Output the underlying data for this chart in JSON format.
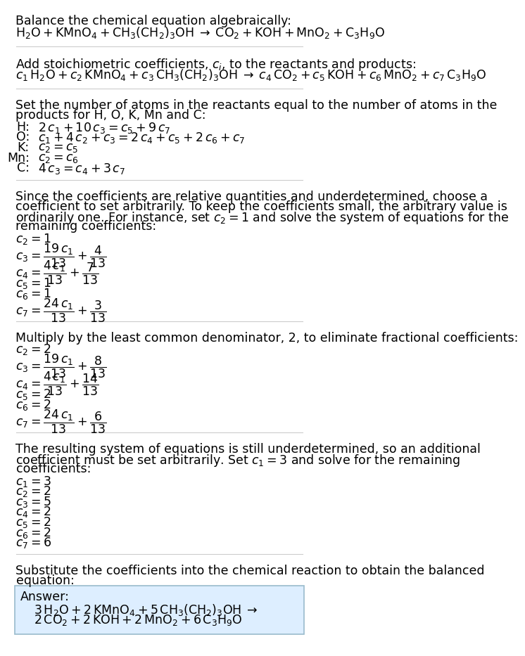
{
  "bg_color": "#ffffff",
  "text_color": "#000000",
  "answer_bg_color": "#ddeeff",
  "answer_border_color": "#99bbcc",
  "fs": 12.5,
  "section1_title": "Balance the chemical equation algebraically:",
  "section1_eq": "$\\mathrm{H_2O + KMnO_4 + CH_3(CH_2)_3OH} \\;\\rightarrow\\; \\mathrm{CO_2 + KOH + MnO_2 + C_3H_9O}$",
  "section2_title": "Add stoichiometric coefficients, $c_i$, to the reactants and products:",
  "section2_eq": "$c_1\\,\\mathrm{H_2O} + c_2\\,\\mathrm{KMnO_4} + c_3\\,\\mathrm{CH_3(CH_2)_3OH} \\;\\rightarrow\\; c_4\\,\\mathrm{CO_2} + c_5\\,\\mathrm{KOH} + c_6\\,\\mathrm{MnO_2} + c_7\\,\\mathrm{C_3H_9O}$",
  "section3_line1": "Set the number of atoms in the reactants equal to the number of atoms in the",
  "section3_line2": "products for H, O, K, Mn and C:",
  "eq_labels": [
    "H:",
    "O:",
    "K:",
    "Mn:",
    "C:"
  ],
  "eq_equations": [
    "$2\\,c_1 + 10\\,c_3 = c_5 + 9\\,c_7$",
    "$c_1 + 4\\,c_2 + c_3 = 2\\,c_4 + c_5 + 2\\,c_6 + c_7$",
    "$c_2 = c_5$",
    "$c_2 = c_6$",
    "$4\\,c_3 = c_4 + 3\\,c_7$"
  ],
  "section4_lines": [
    "Since the coefficients are relative quantities and underdetermined, choose a",
    "coefficient to set arbitrarily. To keep the coefficients small, the arbitrary value is",
    "ordinarily one. For instance, set $c_2 = 1$ and solve the system of equations for the",
    "remaining coefficients:"
  ],
  "math_set1": [
    [
      "$c_2 = 1$",
      false
    ],
    [
      "$c_3 = \\dfrac{19\\,c_1}{13} + \\dfrac{4}{13}$",
      true
    ],
    [
      "$c_4 = \\dfrac{4\\,c_1}{13} + \\dfrac{7}{13}$",
      true
    ],
    [
      "$c_5 = 1$",
      false
    ],
    [
      "$c_6 = 1$",
      false
    ],
    [
      "$c_7 = \\dfrac{24\\,c_1}{13} + \\dfrac{3}{13}$",
      true
    ]
  ],
  "section5_line": "Multiply by the least common denominator, 2, to eliminate fractional coefficients:",
  "math_set2": [
    [
      "$c_2 = 2$",
      false
    ],
    [
      "$c_3 = \\dfrac{19\\,c_1}{13} + \\dfrac{8}{13}$",
      true
    ],
    [
      "$c_4 = \\dfrac{4\\,c_1}{13} + \\dfrac{14}{13}$",
      true
    ],
    [
      "$c_5 = 2$",
      false
    ],
    [
      "$c_6 = 2$",
      false
    ],
    [
      "$c_7 = \\dfrac{24\\,c_1}{13} + \\dfrac{6}{13}$",
      true
    ]
  ],
  "section6_lines": [
    "The resulting system of equations is still underdetermined, so an additional",
    "coefficient must be set arbitrarily. Set $c_1 = 3$ and solve for the remaining",
    "coefficients:"
  ],
  "math_set3": [
    [
      "$c_1 = 3$",
      false
    ],
    [
      "$c_2 = 2$",
      false
    ],
    [
      "$c_3 = 5$",
      false
    ],
    [
      "$c_4 = 2$",
      false
    ],
    [
      "$c_5 = 2$",
      false
    ],
    [
      "$c_6 = 2$",
      false
    ],
    [
      "$c_7 = 6$",
      false
    ]
  ],
  "section7_line1": "Substitute the coefficients into the chemical reaction to obtain the balanced",
  "section7_line2": "equation:",
  "answer_label": "Answer:",
  "answer_line1": "$3\\,\\mathrm{H_2O} + 2\\,\\mathrm{KMnO_4} + 5\\,\\mathrm{CH_3(CH_2)_3OH} \\;\\rightarrow$",
  "answer_line2": "$2\\,\\mathrm{CO_2} + 2\\,\\mathrm{KOH} + 2\\,\\mathrm{MnO_2} + 6\\,\\mathrm{C_3H_9O}$"
}
